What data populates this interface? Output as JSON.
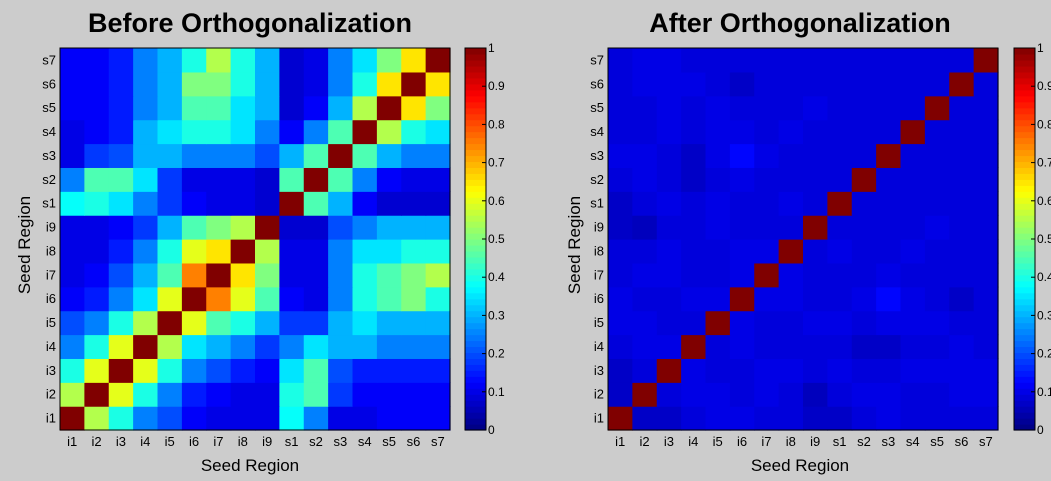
{
  "chart_data": [
    {
      "type": "heatmap",
      "title": "Before Orthogonalization",
      "xlabel": "Seed Region",
      "ylabel": "Seed Region",
      "labels": [
        "i1",
        "i2",
        "i3",
        "i4",
        "i5",
        "i6",
        "i7",
        "i8",
        "i9",
        "s1",
        "s2",
        "s3",
        "s4",
        "s5",
        "s6",
        "s7"
      ],
      "colormap": "jet",
      "clim": [
        0,
        1
      ],
      "colorbar_ticks": [
        "0",
        "0.1",
        "0.2",
        "0.3",
        "0.4",
        "0.5",
        "0.6",
        "0.7",
        "0.8",
        "0.9",
        "1"
      ],
      "values": [
        [
          1.0,
          0.55,
          0.4,
          0.25,
          0.2,
          0.12,
          0.1,
          0.1,
          0.1,
          0.38,
          0.25,
          0.1,
          0.1,
          0.12,
          0.12,
          0.12
        ],
        [
          0.55,
          1.0,
          0.6,
          0.4,
          0.25,
          0.15,
          0.12,
          0.1,
          0.1,
          0.4,
          0.45,
          0.18,
          0.12,
          0.12,
          0.12,
          0.12
        ],
        [
          0.4,
          0.6,
          1.0,
          0.6,
          0.4,
          0.25,
          0.2,
          0.15,
          0.12,
          0.35,
          0.45,
          0.2,
          0.15,
          0.15,
          0.15,
          0.15
        ],
        [
          0.25,
          0.4,
          0.6,
          1.0,
          0.55,
          0.35,
          0.3,
          0.25,
          0.18,
          0.25,
          0.35,
          0.3,
          0.3,
          0.25,
          0.25,
          0.25
        ],
        [
          0.2,
          0.25,
          0.4,
          0.55,
          1.0,
          0.6,
          0.45,
          0.4,
          0.3,
          0.18,
          0.18,
          0.3,
          0.35,
          0.3,
          0.3,
          0.3
        ],
        [
          0.12,
          0.15,
          0.25,
          0.35,
          0.6,
          1.0,
          0.75,
          0.6,
          0.45,
          0.12,
          0.1,
          0.25,
          0.4,
          0.45,
          0.5,
          0.4
        ],
        [
          0.1,
          0.12,
          0.2,
          0.3,
          0.45,
          0.75,
          1.0,
          0.65,
          0.5,
          0.1,
          0.1,
          0.25,
          0.4,
          0.45,
          0.5,
          0.55
        ],
        [
          0.1,
          0.1,
          0.15,
          0.25,
          0.4,
          0.6,
          0.65,
          1.0,
          0.55,
          0.1,
          0.1,
          0.25,
          0.35,
          0.35,
          0.4,
          0.4
        ],
        [
          0.1,
          0.1,
          0.12,
          0.18,
          0.3,
          0.45,
          0.5,
          0.55,
          1.0,
          0.08,
          0.08,
          0.2,
          0.25,
          0.3,
          0.3,
          0.3
        ],
        [
          0.38,
          0.4,
          0.35,
          0.25,
          0.18,
          0.12,
          0.1,
          0.1,
          0.08,
          1.0,
          0.45,
          0.3,
          0.12,
          0.08,
          0.08,
          0.08
        ],
        [
          0.25,
          0.45,
          0.45,
          0.35,
          0.18,
          0.1,
          0.1,
          0.1,
          0.08,
          0.45,
          1.0,
          0.45,
          0.25,
          0.12,
          0.1,
          0.1
        ],
        [
          0.1,
          0.18,
          0.2,
          0.3,
          0.3,
          0.25,
          0.25,
          0.25,
          0.2,
          0.3,
          0.45,
          1.0,
          0.45,
          0.3,
          0.25,
          0.25
        ],
        [
          0.1,
          0.12,
          0.15,
          0.3,
          0.35,
          0.4,
          0.4,
          0.35,
          0.25,
          0.12,
          0.25,
          0.45,
          1.0,
          0.55,
          0.4,
          0.35
        ],
        [
          0.12,
          0.12,
          0.15,
          0.25,
          0.3,
          0.45,
          0.45,
          0.35,
          0.3,
          0.08,
          0.12,
          0.3,
          0.55,
          1.0,
          0.65,
          0.5
        ],
        [
          0.12,
          0.12,
          0.15,
          0.25,
          0.3,
          0.5,
          0.5,
          0.4,
          0.3,
          0.08,
          0.1,
          0.25,
          0.4,
          0.65,
          1.0,
          0.65
        ],
        [
          0.12,
          0.12,
          0.15,
          0.25,
          0.3,
          0.4,
          0.55,
          0.4,
          0.3,
          0.08,
          0.1,
          0.25,
          0.35,
          0.5,
          0.65,
          1.0
        ]
      ]
    },
    {
      "type": "heatmap",
      "title": "After Orthogonalization",
      "xlabel": "Seed Region",
      "ylabel": "Seed Region",
      "labels": [
        "i1",
        "i2",
        "i3",
        "i4",
        "i5",
        "i6",
        "i7",
        "i8",
        "i9",
        "s1",
        "s2",
        "s3",
        "s4",
        "s5",
        "s6",
        "s7"
      ],
      "colormap": "jet",
      "clim": [
        0,
        1
      ],
      "colorbar_ticks": [
        "0",
        "0.1",
        "0.2",
        "0.3",
        "0.4",
        "0.5",
        "0.6",
        "0.7",
        "0.8",
        "0.9",
        "1"
      ],
      "values": [
        [
          1.0,
          0.07,
          0.07,
          0.09,
          0.1,
          0.1,
          0.09,
          0.09,
          0.07,
          0.07,
          0.09,
          0.1,
          0.09,
          0.09,
          0.09,
          0.09
        ],
        [
          0.07,
          1.0,
          0.09,
          0.1,
          0.1,
          0.09,
          0.1,
          0.09,
          0.06,
          0.09,
          0.1,
          0.1,
          0.09,
          0.09,
          0.1,
          0.1
        ],
        [
          0.07,
          0.09,
          1.0,
          0.1,
          0.09,
          0.09,
          0.1,
          0.1,
          0.09,
          0.1,
          0.09,
          0.09,
          0.1,
          0.1,
          0.1,
          0.1
        ],
        [
          0.09,
          0.1,
          0.1,
          1.0,
          0.09,
          0.1,
          0.09,
          0.09,
          0.09,
          0.09,
          0.07,
          0.07,
          0.09,
          0.09,
          0.1,
          0.09
        ],
        [
          0.1,
          0.1,
          0.09,
          0.09,
          1.0,
          0.1,
          0.09,
          0.09,
          0.1,
          0.1,
          0.09,
          0.1,
          0.1,
          0.1,
          0.09,
          0.09
        ],
        [
          0.1,
          0.09,
          0.09,
          0.1,
          0.1,
          1.0,
          0.1,
          0.1,
          0.09,
          0.09,
          0.1,
          0.13,
          0.1,
          0.09,
          0.07,
          0.09
        ],
        [
          0.09,
          0.1,
          0.1,
          0.09,
          0.09,
          0.1,
          1.0,
          0.1,
          0.09,
          0.09,
          0.09,
          0.1,
          0.09,
          0.09,
          0.09,
          0.09
        ],
        [
          0.09,
          0.09,
          0.1,
          0.09,
          0.09,
          0.1,
          0.1,
          1.0,
          0.09,
          0.1,
          0.09,
          0.09,
          0.1,
          0.09,
          0.09,
          0.09
        ],
        [
          0.07,
          0.06,
          0.09,
          0.09,
          0.1,
          0.09,
          0.09,
          0.09,
          1.0,
          0.09,
          0.09,
          0.09,
          0.09,
          0.1,
          0.09,
          0.09
        ],
        [
          0.07,
          0.09,
          0.1,
          0.09,
          0.1,
          0.09,
          0.09,
          0.1,
          0.09,
          1.0,
          0.09,
          0.09,
          0.09,
          0.09,
          0.09,
          0.09
        ],
        [
          0.09,
          0.1,
          0.09,
          0.07,
          0.09,
          0.1,
          0.09,
          0.09,
          0.09,
          0.09,
          1.0,
          0.09,
          0.09,
          0.09,
          0.09,
          0.09
        ],
        [
          0.1,
          0.1,
          0.09,
          0.07,
          0.1,
          0.13,
          0.1,
          0.09,
          0.09,
          0.09,
          0.09,
          1.0,
          0.09,
          0.09,
          0.09,
          0.09
        ],
        [
          0.09,
          0.09,
          0.1,
          0.09,
          0.1,
          0.1,
          0.09,
          0.1,
          0.09,
          0.09,
          0.09,
          0.09,
          1.0,
          0.09,
          0.09,
          0.09
        ],
        [
          0.09,
          0.09,
          0.1,
          0.09,
          0.1,
          0.09,
          0.09,
          0.09,
          0.1,
          0.09,
          0.09,
          0.09,
          0.09,
          1.0,
          0.09,
          0.09
        ],
        [
          0.09,
          0.1,
          0.1,
          0.1,
          0.09,
          0.07,
          0.09,
          0.09,
          0.09,
          0.09,
          0.09,
          0.09,
          0.09,
          0.09,
          1.0,
          0.09
        ],
        [
          0.09,
          0.1,
          0.1,
          0.09,
          0.09,
          0.09,
          0.09,
          0.09,
          0.09,
          0.09,
          0.09,
          0.09,
          0.09,
          0.09,
          0.09,
          1.0
        ]
      ]
    }
  ]
}
